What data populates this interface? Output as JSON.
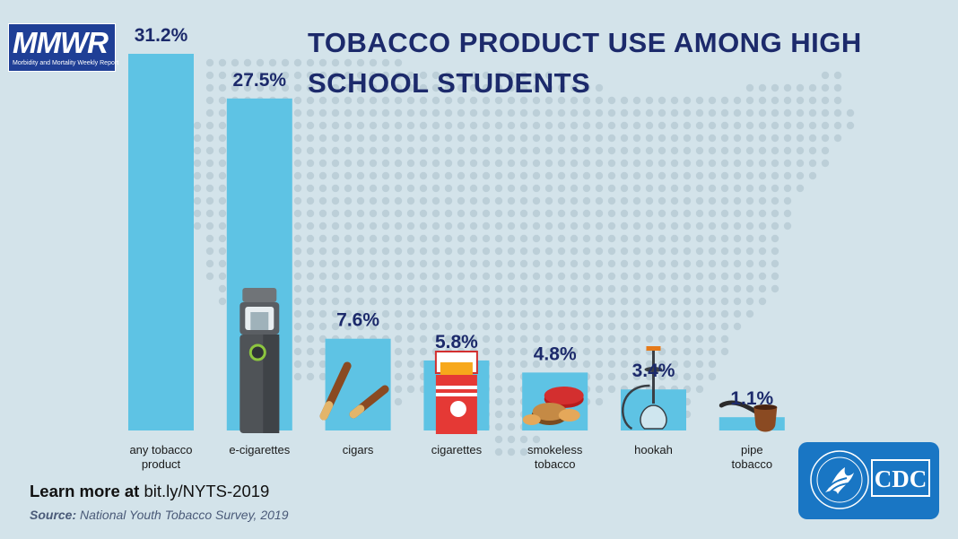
{
  "logo": {
    "name": "MMWR",
    "subtitle": "Morbidity and Mortality Weekly Report"
  },
  "title": "TOBACCO PRODUCT USE AMONG HIGH SCHOOL STUDENTS",
  "chart_data": {
    "type": "bar",
    "title": "TOBACCO PRODUCT USE AMONG HIGH SCHOOL STUDENTS",
    "xlabel": "",
    "ylabel": "",
    "ylim": [
      0,
      31.2
    ],
    "grid": false,
    "legend": "none",
    "categories": [
      "any tobacco product",
      "e-cigarettes",
      "cigars",
      "cigarettes",
      "smokeless tobacco",
      "hookah",
      "pipe tobacco"
    ],
    "category_lines": [
      [
        "any tobacco",
        "product"
      ],
      [
        "e-cigarettes"
      ],
      [
        "cigars"
      ],
      [
        "cigarettes"
      ],
      [
        "smokeless",
        "tobacco"
      ],
      [
        "hookah"
      ],
      [
        "pipe",
        "tobacco"
      ]
    ],
    "values": [
      31.2,
      27.5,
      7.6,
      5.8,
      4.8,
      3.4,
      1.1
    ],
    "value_labels": [
      "31.2%",
      "27.5%",
      "7.6%",
      "5.8%",
      "4.8%",
      "3.4%",
      "1.1%"
    ],
    "icons": [
      "",
      "vape-pen-icon",
      "cigars-icon",
      "cigarette-pack-icon",
      "smokeless-tin-icon",
      "hookah-icon",
      "pipe-icon"
    ],
    "colors": {
      "bar": "#5ec3e4",
      "value_label": "#1c2a6b",
      "category_label": "#1a1a1a",
      "background": "#d3e3ea",
      "map_dots": "#bccfd8"
    }
  },
  "footer": {
    "learn_prefix": "Learn more at",
    "learn_url": "bit.ly/NYTS-2019",
    "source_label": "Source:",
    "source_text": "National Youth Tobacco Survey, 2019"
  },
  "cdc_logo": {
    "text": "CDC",
    "colors": {
      "box": "#1976c4",
      "text": "#ffffff"
    }
  }
}
